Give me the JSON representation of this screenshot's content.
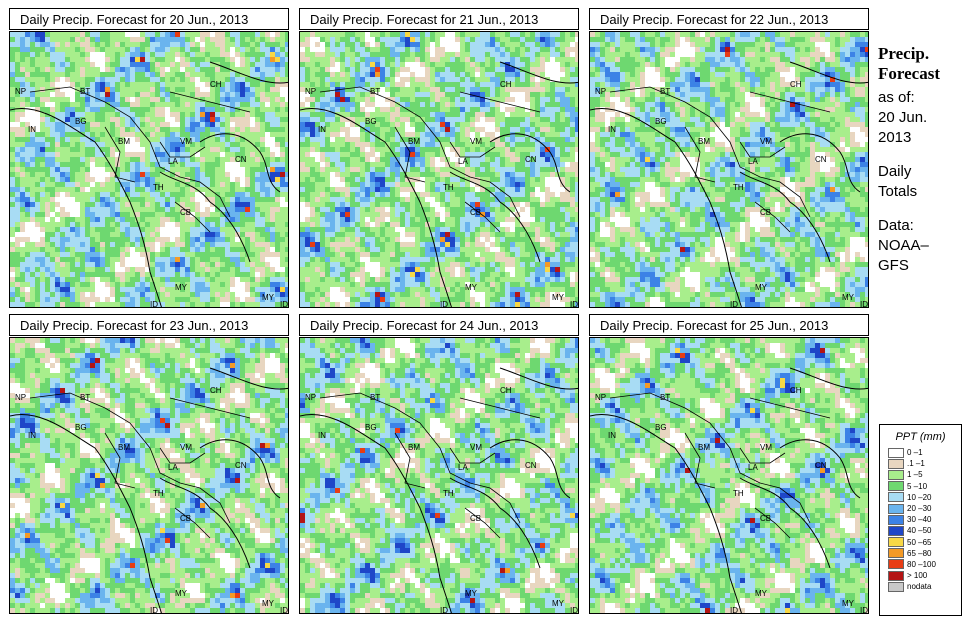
{
  "panels": [
    {
      "title": "Daily Precip. Forecast for  20 Jun., 2013"
    },
    {
      "title": "Daily Precip. Forecast for  21 Jun., 2013"
    },
    {
      "title": "Daily Precip. Forecast for  22 Jun., 2013"
    },
    {
      "title": "Daily Precip. Forecast for  23 Jun., 2013"
    },
    {
      "title": "Daily Precip. Forecast for  24 Jun., 2013"
    },
    {
      "title": "Daily Precip. Forecast for  25 Jun., 2013"
    }
  ],
  "map_labels": [
    "NP",
    "BT",
    "BG",
    "IN",
    "BM",
    "VM",
    "CH",
    "LA",
    "TH",
    "CB",
    "CN",
    "MY",
    "MY",
    "ID",
    "ID"
  ],
  "sidebar": {
    "title_line1": "Precip.",
    "title_line2": "Forecast",
    "asof_1": "as of:",
    "asof_2": "20 Jun.",
    "asof_3": "2013",
    "daily_1": "Daily",
    "daily_2": "Totals",
    "data_1": "Data:",
    "data_2": "NOAA–",
    "data_3": "GFS"
  },
  "legend": {
    "title": "PPT (mm)",
    "items": [
      {
        "label": "0 –1",
        "color": "#ffffff"
      },
      {
        "label": ".1 –1",
        "color": "#e8d6c0"
      },
      {
        "label": "1 –5",
        "color": "#a8ee8c"
      },
      {
        "label": "5 –10",
        "color": "#6ed870"
      },
      {
        "label": "10 –20",
        "color": "#a8dcf4"
      },
      {
        "label": "20 –30",
        "color": "#6ab4ee"
      },
      {
        "label": "30 –40",
        "color": "#3c82e6"
      },
      {
        "label": "40 –50",
        "color": "#1e46c8"
      },
      {
        "label": "50 –65",
        "color": "#f8d846"
      },
      {
        "label": "65 –80",
        "color": "#f49a26"
      },
      {
        "label": "80 –100",
        "color": "#e83c14"
      },
      {
        "label": "> 100",
        "color": "#b41414"
      },
      {
        "label": "nodata",
        "color": "#c8c8c8"
      }
    ]
  }
}
